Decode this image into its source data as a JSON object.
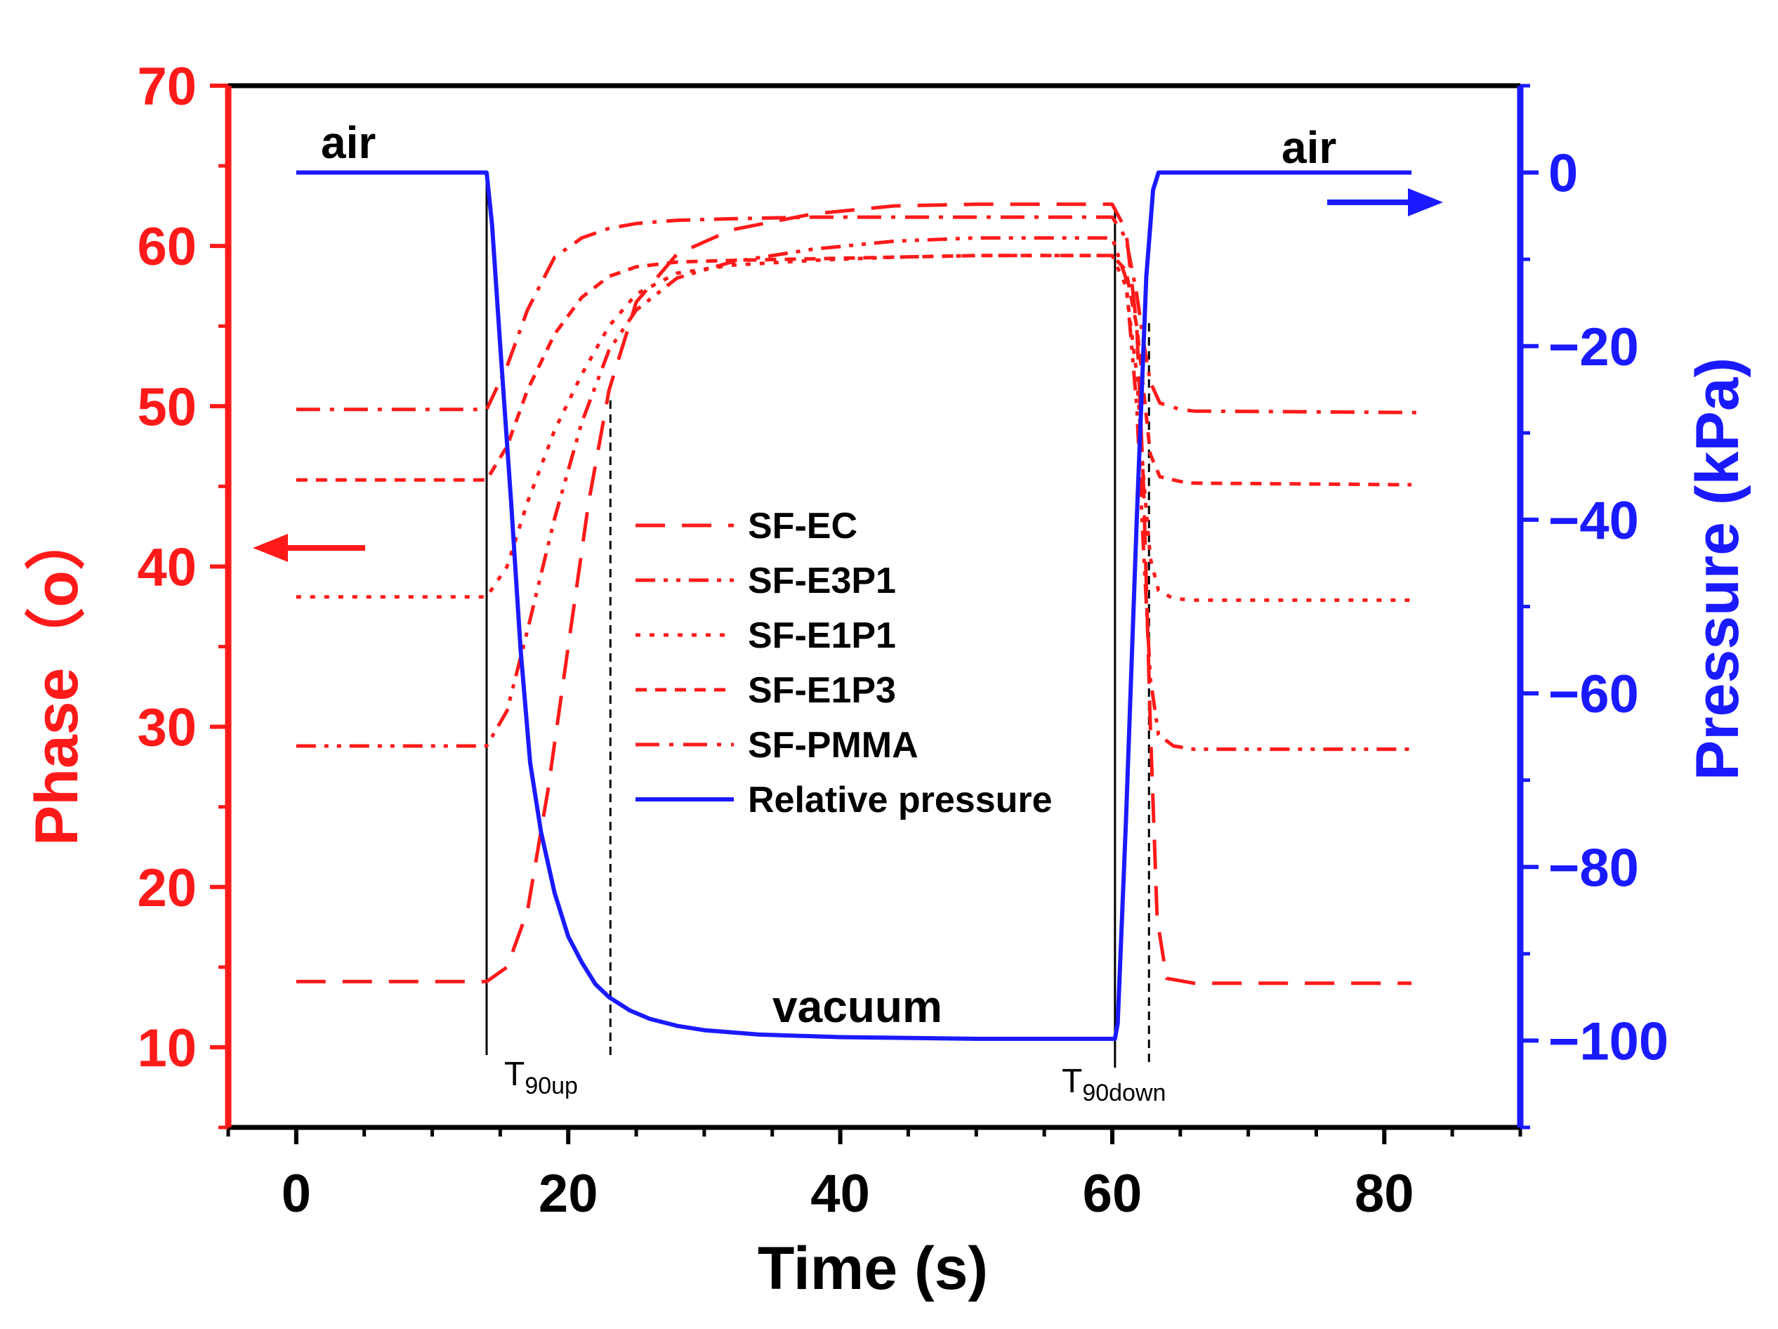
{
  "chart_data": {
    "type": "line",
    "xlabel": "Time (s)",
    "ylabel_left": "Phase（o）",
    "ylabel_right": "Pressure (kPa)",
    "xlim": [
      -5,
      90
    ],
    "ylim_left": [
      5,
      70
    ],
    "ylim_right": [
      -110,
      10
    ],
    "xticks": [
      0,
      20,
      40,
      60,
      80
    ],
    "yticks_left": [
      10,
      20,
      30,
      40,
      50,
      60,
      70
    ],
    "yticks_right": [
      0,
      -20,
      -40,
      -60,
      -80,
      -100
    ],
    "xtick_labels": [
      "0",
      "20",
      "40",
      "60",
      "80"
    ],
    "ytick_labels_left": [
      "10",
      "20",
      "30",
      "40",
      "50",
      "60",
      "70"
    ],
    "ytick_labels_right": [
      "0",
      "−20",
      "−40",
      "−60",
      "−80",
      "−100"
    ],
    "colors": {
      "phase": "#ff1a1a",
      "pressure": "#1a1aff",
      "frame": "#000000"
    },
    "annotations": {
      "air_left": "air",
      "air_right": "air",
      "vacuum": "vacuum",
      "t90up_main": "T",
      "t90up_sub": "90up",
      "t90down_main": "T",
      "t90down_sub": "90down"
    },
    "markers": {
      "t_on": 14,
      "t_off": 60.2,
      "t90up": 23.1,
      "t90down": 62.7
    },
    "phase_series": [
      {
        "name": "SF-EC",
        "dash": "long",
        "points": [
          [
            0,
            14.1
          ],
          [
            14,
            14.1
          ],
          [
            15.5,
            15
          ],
          [
            17,
            18.5
          ],
          [
            18.5,
            26
          ],
          [
            20,
            35
          ],
          [
            21.5,
            44
          ],
          [
            23,
            51
          ],
          [
            25,
            56.5
          ],
          [
            28,
            59.5
          ],
          [
            32,
            61
          ],
          [
            38,
            62
          ],
          [
            44,
            62.5
          ],
          [
            50,
            62.6
          ],
          [
            55,
            62.6
          ],
          [
            60,
            62.6
          ],
          [
            61,
            61
          ],
          [
            61.8,
            55
          ],
          [
            62.3,
            45
          ],
          [
            62.8,
            30
          ],
          [
            63.3,
            18
          ],
          [
            64,
            14.3
          ],
          [
            66,
            14
          ],
          [
            82,
            14
          ]
        ]
      },
      {
        "name": "SF-E3P1",
        "dash": "dashdotdot",
        "points": [
          [
            0,
            28.8
          ],
          [
            14,
            28.8
          ],
          [
            15.5,
            31
          ],
          [
            17,
            36
          ],
          [
            19,
            43
          ],
          [
            21,
            49
          ],
          [
            23,
            53.5
          ],
          [
            25,
            56
          ],
          [
            28,
            58
          ],
          [
            32,
            59
          ],
          [
            38,
            59.8
          ],
          [
            44,
            60.3
          ],
          [
            50,
            60.5
          ],
          [
            55,
            60.5
          ],
          [
            60,
            60.5
          ],
          [
            61,
            58
          ],
          [
            61.8,
            50
          ],
          [
            62.3,
            41
          ],
          [
            62.8,
            33
          ],
          [
            63.4,
            29.5
          ],
          [
            64.5,
            28.8
          ],
          [
            66,
            28.6
          ],
          [
            82,
            28.6
          ]
        ]
      },
      {
        "name": "SF-E1P1",
        "dash": "dotted",
        "points": [
          [
            0,
            38.1
          ],
          [
            14,
            38.1
          ],
          [
            15.5,
            40
          ],
          [
            17,
            44
          ],
          [
            19,
            48.5
          ],
          [
            21,
            52
          ],
          [
            23,
            55
          ],
          [
            25,
            57
          ],
          [
            28,
            58.3
          ],
          [
            32,
            58.8
          ],
          [
            38,
            59.1
          ],
          [
            44,
            59.3
          ],
          [
            50,
            59.4
          ],
          [
            55,
            59.4
          ],
          [
            60,
            59.4
          ],
          [
            61,
            57.5
          ],
          [
            61.8,
            52
          ],
          [
            62.3,
            45.5
          ],
          [
            62.8,
            40.5
          ],
          [
            63.4,
            38.5
          ],
          [
            64.5,
            38
          ],
          [
            66,
            37.9
          ],
          [
            82,
            37.9
          ]
        ]
      },
      {
        "name": "SF-E1P3",
        "dash": "short",
        "points": [
          [
            0,
            45.4
          ],
          [
            14,
            45.4
          ],
          [
            15.5,
            47.5
          ],
          [
            17,
            51
          ],
          [
            19,
            54.5
          ],
          [
            21,
            56.8
          ],
          [
            23,
            58.1
          ],
          [
            25,
            58.7
          ],
          [
            28,
            59
          ],
          [
            32,
            59.1
          ],
          [
            38,
            59.2
          ],
          [
            44,
            59.3
          ],
          [
            50,
            59.4
          ],
          [
            55,
            59.4
          ],
          [
            60,
            59.4
          ],
          [
            61,
            58.5
          ],
          [
            61.8,
            55
          ],
          [
            62.3,
            51
          ],
          [
            62.8,
            47
          ],
          [
            63.5,
            45.6
          ],
          [
            65,
            45.3
          ],
          [
            66,
            45.2
          ],
          [
            82,
            45.1
          ]
        ]
      },
      {
        "name": "SF-PMMA",
        "dash": "dashdot",
        "points": [
          [
            0,
            49.8
          ],
          [
            14,
            49.8
          ],
          [
            15.5,
            52.5
          ],
          [
            17,
            56
          ],
          [
            19,
            59.3
          ],
          [
            21,
            60.5
          ],
          [
            23,
            61.1
          ],
          [
            25,
            61.4
          ],
          [
            28,
            61.6
          ],
          [
            32,
            61.7
          ],
          [
            38,
            61.8
          ],
          [
            44,
            61.8
          ],
          [
            50,
            61.8
          ],
          [
            55,
            61.8
          ],
          [
            60,
            61.8
          ],
          [
            61,
            60.5
          ],
          [
            61.8,
            57
          ],
          [
            62.3,
            54
          ],
          [
            62.8,
            51.5
          ],
          [
            63.5,
            50.2
          ],
          [
            65,
            49.8
          ],
          [
            66,
            49.7
          ],
          [
            83,
            49.6
          ]
        ]
      }
    ],
    "pressure_series": {
      "name": "Relative pressure",
      "points": [
        [
          0,
          0
        ],
        [
          14,
          0
        ],
        [
          14.4,
          -6
        ],
        [
          15,
          -20
        ],
        [
          15.8,
          -38
        ],
        [
          16.5,
          -55
        ],
        [
          17.2,
          -68
        ],
        [
          18,
          -76
        ],
        [
          19,
          -83
        ],
        [
          20,
          -88
        ],
        [
          21,
          -91
        ],
        [
          22,
          -93.5
        ],
        [
          23,
          -95
        ],
        [
          24.5,
          -96.5
        ],
        [
          26,
          -97.5
        ],
        [
          28,
          -98.3
        ],
        [
          30,
          -98.8
        ],
        [
          34,
          -99.3
        ],
        [
          40,
          -99.6
        ],
        [
          50,
          -99.8
        ],
        [
          55,
          -99.8
        ],
        [
          60.2,
          -99.8
        ],
        [
          60.4,
          -98
        ],
        [
          61,
          -75
        ],
        [
          61.8,
          -40
        ],
        [
          62.5,
          -12
        ],
        [
          63,
          -2
        ],
        [
          63.4,
          0
        ],
        [
          82,
          0
        ]
      ]
    },
    "legend": [
      {
        "label": "SF-EC",
        "kind": "phase",
        "dash": "long"
      },
      {
        "label": "SF-E3P1",
        "kind": "phase",
        "dash": "dashdotdot"
      },
      {
        "label": "SF-E1P1",
        "kind": "phase",
        "dash": "dotted"
      },
      {
        "label": "SF-E1P3",
        "kind": "phase",
        "dash": "short"
      },
      {
        "label": "SF-PMMA",
        "kind": "phase",
        "dash": "dashdot"
      },
      {
        "label": "Relative pressure",
        "kind": "pressure",
        "dash": "solid"
      }
    ]
  }
}
